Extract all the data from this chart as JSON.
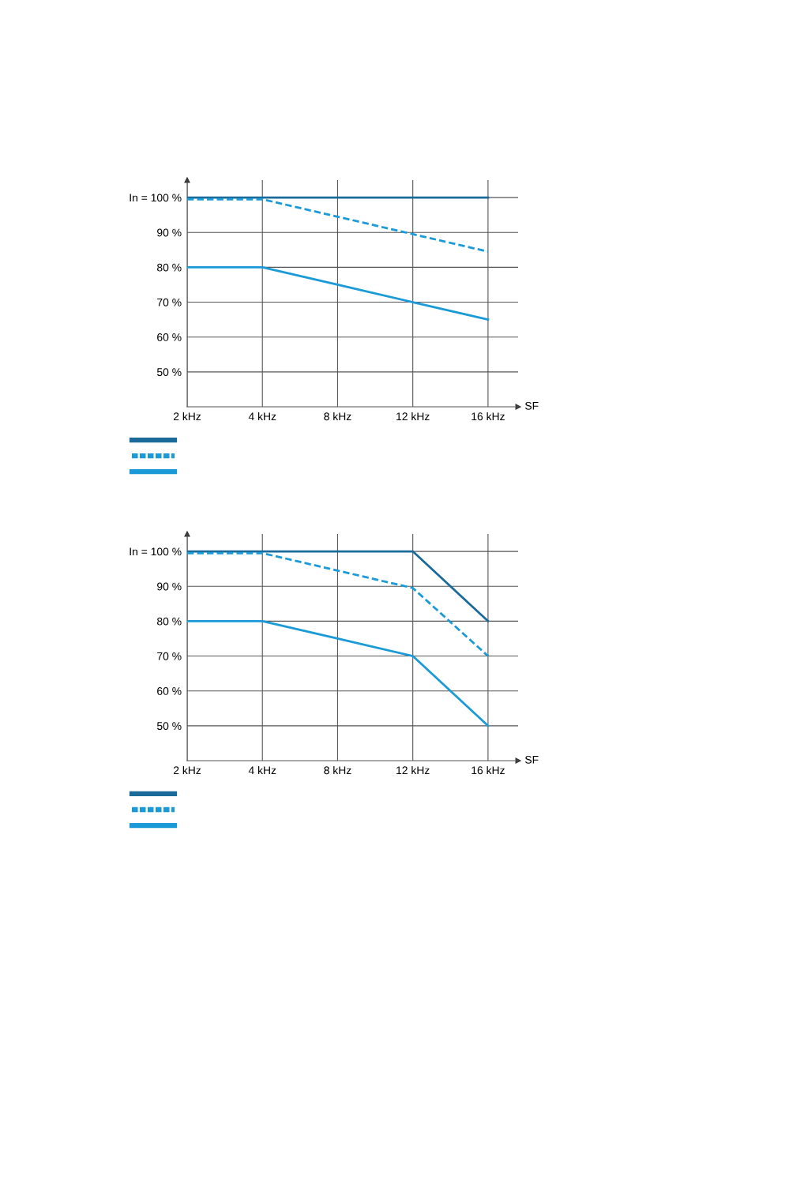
{
  "chart_data": [
    {
      "type": "line",
      "categories": [
        "2 kHz",
        "4 kHz",
        "8 kHz",
        "12 kHz",
        "16 kHz"
      ],
      "xlabel": "SF",
      "ylim": [
        40,
        105
      ],
      "yticks": [
        {
          "value": 50,
          "label": "50 %"
        },
        {
          "value": 60,
          "label": "60 %"
        },
        {
          "value": 70,
          "label": "70 %"
        },
        {
          "value": 80,
          "label": "80 %"
        },
        {
          "value": 90,
          "label": "90 %"
        },
        {
          "value": 100,
          "label": "In = 100 %"
        }
      ],
      "grid": true,
      "series": [
        {
          "color": "#1a6a9a",
          "line_style": "solid",
          "values": [
            100,
            100,
            100,
            100,
            100
          ]
        },
        {
          "color": "#1a9ad6",
          "line_style": "dashed",
          "values": [
            99.5,
            99.5,
            94.5,
            89.5,
            84.5
          ]
        },
        {
          "color": "#1a9ad6",
          "line_style": "solid",
          "values": [
            80,
            80,
            75,
            70,
            65
          ]
        }
      ]
    },
    {
      "type": "line",
      "categories": [
        "2 kHz",
        "4 kHz",
        "8 kHz",
        "12 kHz",
        "16 kHz"
      ],
      "xlabel": "SF",
      "ylim": [
        40,
        105
      ],
      "yticks": [
        {
          "value": 50,
          "label": "50 %"
        },
        {
          "value": 60,
          "label": "60 %"
        },
        {
          "value": 70,
          "label": "70 %"
        },
        {
          "value": 80,
          "label": "80 %"
        },
        {
          "value": 90,
          "label": "90 %"
        },
        {
          "value": 100,
          "label": "In = 100 %"
        }
      ],
      "grid": true,
      "series": [
        {
          "color": "#1a6a9a",
          "line_style": "solid",
          "values": [
            100,
            100,
            100,
            100,
            80
          ]
        },
        {
          "color": "#1a9ad6",
          "line_style": "dashed",
          "values": [
            99.5,
            99.5,
            94.5,
            89.5,
            70
          ]
        },
        {
          "color": "#1a9ad6",
          "line_style": "solid",
          "values": [
            80,
            80,
            75,
            70,
            50
          ]
        }
      ]
    }
  ]
}
